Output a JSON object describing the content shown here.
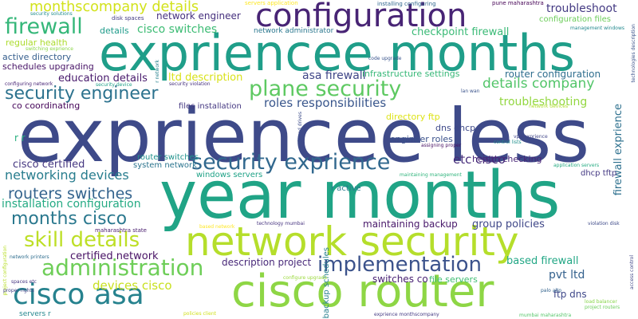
{
  "words": [
    {
      "text": "expriencee less",
      "color": "#3e4a89"
    },
    {
      "text": "year months",
      "color": "#20a486"
    },
    {
      "text": "expriencee months",
      "color": "#1f9e89"
    },
    {
      "text": "network security",
      "color": "#b5de2b"
    },
    {
      "text": "cisco router",
      "color": "#8ed645"
    },
    {
      "text": "configuration",
      "color": "#482475"
    },
    {
      "text": "cisco asa",
      "color": "#26828e"
    },
    {
      "text": "administration",
      "color": "#6ece58"
    },
    {
      "text": "implementation",
      "color": "#3b528b"
    },
    {
      "text": "security exprience",
      "color": "#31688e"
    },
    {
      "text": "plane security",
      "color": "#5ec962"
    },
    {
      "text": "security engineer",
      "color": "#2c728e"
    },
    {
      "text": "firewall",
      "color": "#35b779"
    },
    {
      "text": "skill details",
      "color": "#bddf26"
    },
    {
      "text": "months cisco",
      "color": "#2a788e"
    },
    {
      "text": "routers switches",
      "color": "#33638d"
    },
    {
      "text": "networking devices",
      "color": "#287d8e"
    },
    {
      "text": "monthscompany details",
      "color": "#d2e21b"
    },
    {
      "text": "details company",
      "color": "#52c569"
    },
    {
      "text": "roles responsibilities",
      "color": "#39568c"
    },
    {
      "text": "devices cisco",
      "color": "#c8e020"
    },
    {
      "text": "installation configuration",
      "color": "#24aa83"
    },
    {
      "text": "troubleshoot",
      "color": "#443a83"
    },
    {
      "text": "troubleshooting",
      "color": "#93d741"
    },
    {
      "text": "cisco switches",
      "color": "#3dbc74"
    },
    {
      "text": "asa firewall",
      "color": "#404688"
    },
    {
      "text": "education details",
      "color": "#481a6c"
    },
    {
      "text": "ltd description",
      "color": "#d8e219"
    },
    {
      "text": "cisco certified",
      "color": "#453781"
    },
    {
      "text": "etc cisco",
      "color": "#472d7b"
    },
    {
      "text": "pvt ltd",
      "color": "#34618d"
    },
    {
      "text": "based firewall",
      "color": "#22a785"
    },
    {
      "text": "certified network",
      "color": "#471164"
    },
    {
      "text": "group policies",
      "color": "#3f4788"
    },
    {
      "text": "checkpoint firewall",
      "color": "#3aba76"
    },
    {
      "text": "network engineer",
      "color": "#46307e"
    },
    {
      "text": "router configuration",
      "color": "#2e6e8e"
    },
    {
      "text": "maintaining backup",
      "color": "#48186a"
    },
    {
      "text": "description project",
      "color": "#482979"
    },
    {
      "text": "switches co",
      "color": "#482173"
    },
    {
      "text": "file servers",
      "color": "#40bd72"
    },
    {
      "text": "health checking",
      "color": "#482677"
    },
    {
      "text": "ftp dns",
      "color": "#3f4889"
    },
    {
      "text": "r r",
      "color": "#29af7f"
    },
    {
      "text": "firewall exprience",
      "color": "#2d708e"
    },
    {
      "text": "active directory",
      "color": "#355e8d"
    },
    {
      "text": "schedules upgrading",
      "color": "#481467"
    },
    {
      "text": "co coordinating",
      "color": "#450559"
    },
    {
      "text": "regular health",
      "color": "#addc30"
    },
    {
      "text": "details",
      "color": "#1e9b8a"
    },
    {
      "text": "infrastructure settings",
      "color": "#37b878"
    },
    {
      "text": "configuration files",
      "color": "#6ccd5a"
    },
    {
      "text": "system network",
      "color": "#2b748e"
    },
    {
      "text": "router switches",
      "color": "#20928c"
    },
    {
      "text": "windows servers",
      "color": "#1fa287"
    },
    {
      "text": "dhcp tftp",
      "color": "#443983"
    },
    {
      "text": "directory ftp",
      "color": "#dde318"
    },
    {
      "text": "dns dhcp",
      "color": "#3e4989"
    },
    {
      "text": "engineer roles",
      "color": "#3b528b"
    },
    {
      "text": "network administrator",
      "color": "#2a778e"
    },
    {
      "text": "files installation",
      "color": "#453882"
    },
    {
      "text": "backup schedules",
      "color": "#277f8e"
    },
    {
      "text": "r active",
      "color": "#287c8e"
    },
    {
      "text": "maharashtra state",
      "color": "#481b6d"
    },
    {
      "text": "installing configuring",
      "color": "#31678e"
    },
    {
      "text": "pune maharashtra",
      "color": "#440154"
    },
    {
      "text": "servers application",
      "color": "#fde725"
    },
    {
      "text": "disk spaces",
      "color": "#443b84"
    },
    {
      "text": "security solutions",
      "color": "#228c8d"
    },
    {
      "text": "switching exprience",
      "color": "#8bd646"
    },
    {
      "text": "code upgrade",
      "color": "#3a548c"
    },
    {
      "text": "configuring network",
      "color": "#482576"
    },
    {
      "text": "security device",
      "color": "#1fa088"
    },
    {
      "text": "security violation",
      "color": "#46307e"
    },
    {
      "text": "lan wan",
      "color": "#3a538b"
    },
    {
      "text": "network devices",
      "color": "#b0dd2f"
    },
    {
      "text": "vpn exprience",
      "color": "#404588"
    },
    {
      "text": "assigning proper",
      "color": "#471063"
    },
    {
      "text": "control lists",
      "color": "#21908d"
    },
    {
      "text": "application servers",
      "color": "#25ab82"
    },
    {
      "text": "violation disk",
      "color": "#3e4a89"
    },
    {
      "text": "management windows",
      "color": "#23898e"
    },
    {
      "text": "technologies description",
      "color": "#3b528b"
    },
    {
      "text": "access control",
      "color": "#404688"
    },
    {
      "text": "maintaining management",
      "color": "#2fb47c"
    },
    {
      "text": "shared drives",
      "color": "#3d4d8a"
    },
    {
      "text": "r network",
      "color": "#26828e"
    },
    {
      "text": "based network",
      "color": "#fde725"
    },
    {
      "text": "technology mumbai",
      "color": "#46337f"
    },
    {
      "text": "network printers",
      "color": "#2e6d8e"
    },
    {
      "text": "project configuration",
      "color": "#b8de29"
    },
    {
      "text": "spaces etc",
      "color": "#453581"
    },
    {
      "text": "proper rights",
      "color": "#424186"
    },
    {
      "text": "servers r",
      "color": "#24878e"
    },
    {
      "text": "configure upgrade",
      "color": "#9bd93c"
    },
    {
      "text": "policies client",
      "color": "#d0e11c"
    },
    {
      "text": "exprience monthscompany",
      "color": "#443a83"
    },
    {
      "text": "mumbai maharashtra",
      "color": "#54c568"
    },
    {
      "text": "palo alto",
      "color": "#33638d"
    },
    {
      "text": "load balancer",
      "color": "#86d549"
    },
    {
      "text": "project routers",
      "color": "#6ccd5a"
    }
  ]
}
